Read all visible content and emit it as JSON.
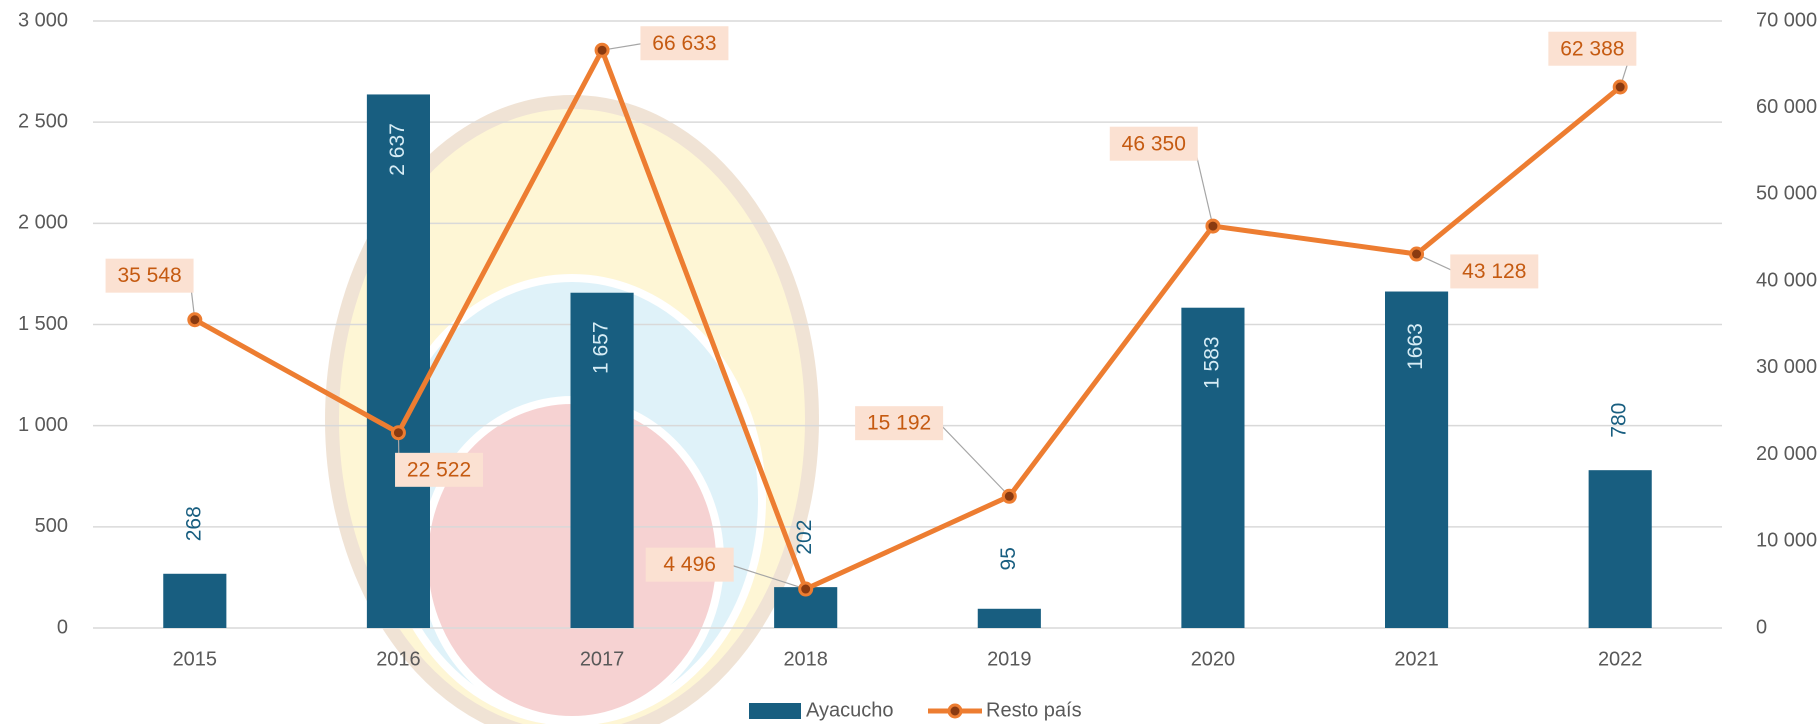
{
  "chart_data": {
    "type": "bar",
    "categories": [
      "2015",
      "2016",
      "2017",
      "2018",
      "2019",
      "2020",
      "2021",
      "2022"
    ],
    "series": [
      {
        "name": "Ayacucho",
        "color": "#185e80",
        "values": [
          268,
          2637,
          1657,
          202,
          95,
          1583,
          1663,
          780
        ],
        "value_labels": [
          "268",
          "2 637",
          "1 657",
          "202",
          "95",
          "1 583",
          "1663",
          "780"
        ]
      },
      {
        "name": "Resto país",
        "color": "#ed7d31",
        "type": "line",
        "axis": "y2",
        "values": [
          35548,
          22522,
          66633,
          4496,
          15192,
          46350,
          43128,
          62388
        ],
        "value_labels": [
          "35 548",
          "22 522",
          "66 633",
          "4 496",
          "15 192",
          "46 350",
          "43 128",
          "62 388"
        ]
      }
    ],
    "ylim": [
      0,
      3000
    ],
    "yticks": [
      0,
      500,
      {
        "value": 1000,
        "label": "1 000"
      },
      {
        "value": 1500,
        "label": "1 500"
      },
      {
        "value": 2000,
        "label": "2 000"
      },
      {
        "value": 2500,
        "label": "2 500"
      },
      {
        "value": 3000,
        "label": "3 000"
      }
    ],
    "y2lim": [
      0,
      70000
    ],
    "y2ticks": [
      0,
      {
        "value": 10000,
        "label": "10 000"
      },
      {
        "value": 20000,
        "label": "20 000"
      },
      {
        "value": 30000,
        "label": "30 000"
      },
      {
        "value": 40000,
        "label": "40 000"
      },
      {
        "value": 50000,
        "label": "50 000"
      },
      {
        "value": 60000,
        "label": "60 000"
      },
      {
        "value": 70000,
        "label": "70 000"
      }
    ],
    "grid": true
  }
}
